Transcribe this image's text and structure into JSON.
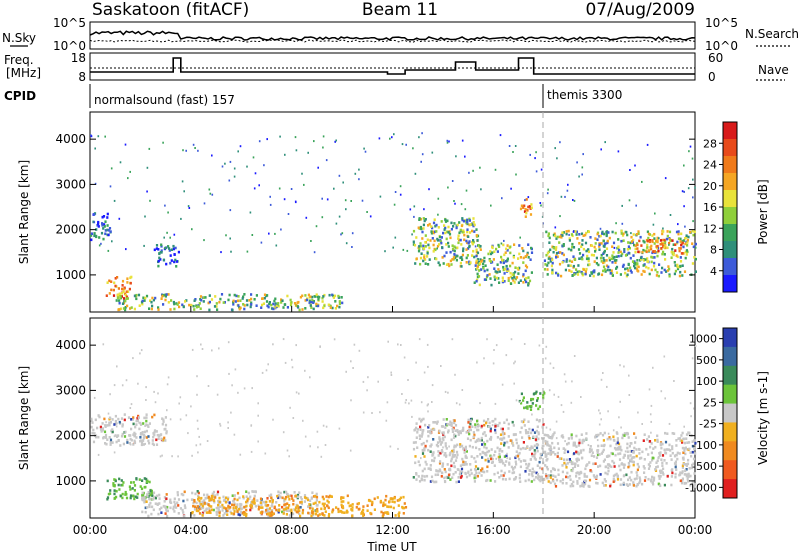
{
  "header": {
    "station": "Saskatoon (fitACF)",
    "beam": "Beam 11",
    "date": "07/Aug/2009"
  },
  "nsky_panel": {
    "left_label": "N.Sky",
    "right_label": "N.Search",
    "left_ticks": [
      "10^5",
      "10^0"
    ],
    "right_ticks": [
      "10^5",
      "10^0"
    ]
  },
  "freq_panel": {
    "left_label_line1": "Freq.",
    "left_label_line2": "[MHz]",
    "right_label": "Nave",
    "left_ticks": [
      "18",
      "8"
    ],
    "right_ticks": [
      "60",
      "0"
    ]
  },
  "cpid": {
    "label": "CPID",
    "segments": [
      {
        "name": "normalsound (fast) 157",
        "start_hour": 0
      },
      {
        "name": "themis 3300",
        "start_hour": 18
      }
    ]
  },
  "chart_data": [
    {
      "type": "heatmap",
      "title": "Power",
      "ylabel": "Slant Range [km]",
      "xlabel": "",
      "x_range_hours": [
        0,
        24
      ],
      "ylim": [
        180,
        4600
      ],
      "y_ticks": [
        "1000",
        "2000",
        "3000",
        "4000"
      ],
      "colorbar": {
        "label": "Power [dB]",
        "ticks": [
          "4",
          "8",
          "12",
          "16",
          "20",
          "24",
          "28"
        ],
        "colors": [
          "#1a1aff",
          "#3d5bd9",
          "#2f8f7a",
          "#3aa35a",
          "#8fcf3a",
          "#e8e23a",
          "#f5a623",
          "#f07a1a",
          "#e84a1a",
          "#d81a1a"
        ]
      },
      "echo_regions": [
        {
          "hours": [
            0.0,
            0.8
          ],
          "range_km": [
            1800,
            2400
          ],
          "level": "low"
        },
        {
          "hours": [
            0.6,
            1.6
          ],
          "range_km": [
            500,
            1000
          ],
          "level": "high"
        },
        {
          "hours": [
            1.0,
            10.0
          ],
          "range_km": [
            250,
            600
          ],
          "level": "medium"
        },
        {
          "hours": [
            2.5,
            3.5
          ],
          "range_km": [
            1200,
            1700
          ],
          "level": "low"
        },
        {
          "hours": [
            12.8,
            15.4
          ],
          "range_km": [
            1200,
            2300
          ],
          "level": "medium"
        },
        {
          "hours": [
            15.2,
            17.5
          ],
          "range_km": [
            800,
            1700
          ],
          "level": "medium"
        },
        {
          "hours": [
            17.0,
            17.5
          ],
          "range_km": [
            2300,
            2700
          ],
          "level": "high"
        },
        {
          "hours": [
            18.0,
            24.0
          ],
          "range_km": [
            1000,
            2000
          ],
          "level": "medium"
        },
        {
          "hours": [
            21.5,
            23.5
          ],
          "range_km": [
            1500,
            1800
          ],
          "level": "high"
        }
      ]
    },
    {
      "type": "heatmap",
      "title": "Velocity",
      "ylabel": "Slant Range [km]",
      "xlabel": "Time UT",
      "x_range_hours": [
        0,
        24
      ],
      "x_ticks": [
        "00:00",
        "04:00",
        "08:00",
        "12:00",
        "16:00",
        "20:00",
        "00:00"
      ],
      "ylim": [
        180,
        4600
      ],
      "y_ticks": [
        "1000",
        "2000",
        "3000",
        "4000"
      ],
      "colorbar": {
        "label": "Velocity [m s-1]",
        "ticks": [
          "1000",
          "500",
          "100",
          "25",
          "-25",
          "-100",
          "-500",
          "-1000"
        ],
        "colors": [
          "#2a3fb0",
          "#3a6aa0",
          "#3a8a5a",
          "#6cc43a",
          "#c8c8c8",
          "#f0b020",
          "#f08a20",
          "#f05a20",
          "#e02020"
        ]
      },
      "echo_regions": [
        {
          "hours": [
            0.0,
            3.0
          ],
          "range_km": [
            1800,
            2500
          ],
          "level": "ground"
        },
        {
          "hours": [
            0.5,
            2.5
          ],
          "range_km": [
            600,
            1100
          ],
          "level": "positive"
        },
        {
          "hours": [
            2.0,
            9.0
          ],
          "range_km": [
            250,
            800
          ],
          "level": "ground"
        },
        {
          "hours": [
            4.0,
            12.5
          ],
          "range_km": [
            250,
            700
          ],
          "level": "negative"
        },
        {
          "hours": [
            12.8,
            18.0
          ],
          "range_km": [
            1000,
            2400
          ],
          "level": "ground"
        },
        {
          "hours": [
            18.0,
            24.0
          ],
          "range_km": [
            900,
            2100
          ],
          "level": "ground"
        },
        {
          "hours": [
            17.0,
            18.0
          ],
          "range_km": [
            2600,
            3000
          ],
          "level": "positive"
        }
      ]
    }
  ]
}
